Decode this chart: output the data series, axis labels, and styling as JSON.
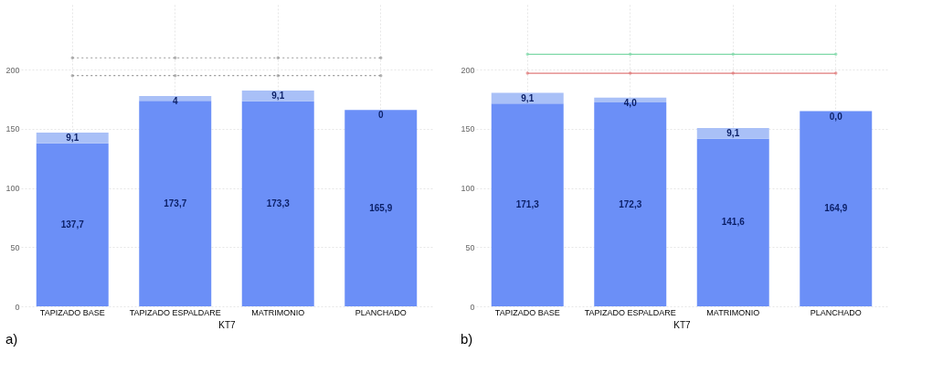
{
  "chart_data": [
    {
      "type": "bar",
      "stacked": true,
      "xlabel": "KT7",
      "categories": [
        "TAPIZADO BASE",
        "TAPIZADO ESPALDARE",
        "MATRIMONIO",
        "PLANCHADO"
      ],
      "ylim": [
        0,
        255
      ],
      "yticks": [
        0,
        50,
        100,
        150,
        200
      ],
      "grid": true,
      "legend": false,
      "annotations": [
        "a)"
      ],
      "series": [
        {
          "color": "#6b8ff7",
          "values": [
            137.7,
            173.7,
            173.3,
            165.9
          ],
          "value_labels": [
            "137,7",
            "173,7",
            "173,3",
            "165,9"
          ]
        },
        {
          "color": "#a9c0f7",
          "values": [
            9.1,
            4,
            9.1,
            0
          ],
          "value_labels": [
            "9,1",
            "4",
            "9,1",
            "0"
          ]
        }
      ],
      "ref_lines": [
        {
          "axis": "y",
          "value": 210,
          "color": "#999999",
          "line_style": "dotted"
        },
        {
          "axis": "y",
          "value": 195,
          "color": "#999999",
          "line_style": "dotted"
        }
      ]
    },
    {
      "type": "bar",
      "stacked": true,
      "xlabel": "KT7",
      "categories": [
        "TAPIZADO BASE",
        "TAPIZADO ESPALDARE",
        "MATRIMONIO",
        "PLANCHADO"
      ],
      "ylim": [
        0,
        255
      ],
      "yticks": [
        0,
        50,
        100,
        150,
        200
      ],
      "grid": true,
      "legend": false,
      "annotations": [
        "b)"
      ],
      "series": [
        {
          "color": "#6b8ff7",
          "values": [
            171.3,
            172.3,
            141.6,
            164.9
          ],
          "value_labels": [
            "171,3",
            "172,3",
            "141,6",
            "164,9"
          ]
        },
        {
          "color": "#a9c0f7",
          "values": [
            9.1,
            4.0,
            9.1,
            0.0
          ],
          "value_labels": [
            "9,1",
            "4,0",
            "9,1",
            "0,0"
          ]
        }
      ],
      "ref_lines": [
        {
          "axis": "y",
          "value": 213,
          "color": "#7fd8a8",
          "line_style": "solid"
        },
        {
          "axis": "y",
          "value": 197,
          "color": "#e07a7a",
          "line_style": "solid"
        }
      ]
    }
  ]
}
